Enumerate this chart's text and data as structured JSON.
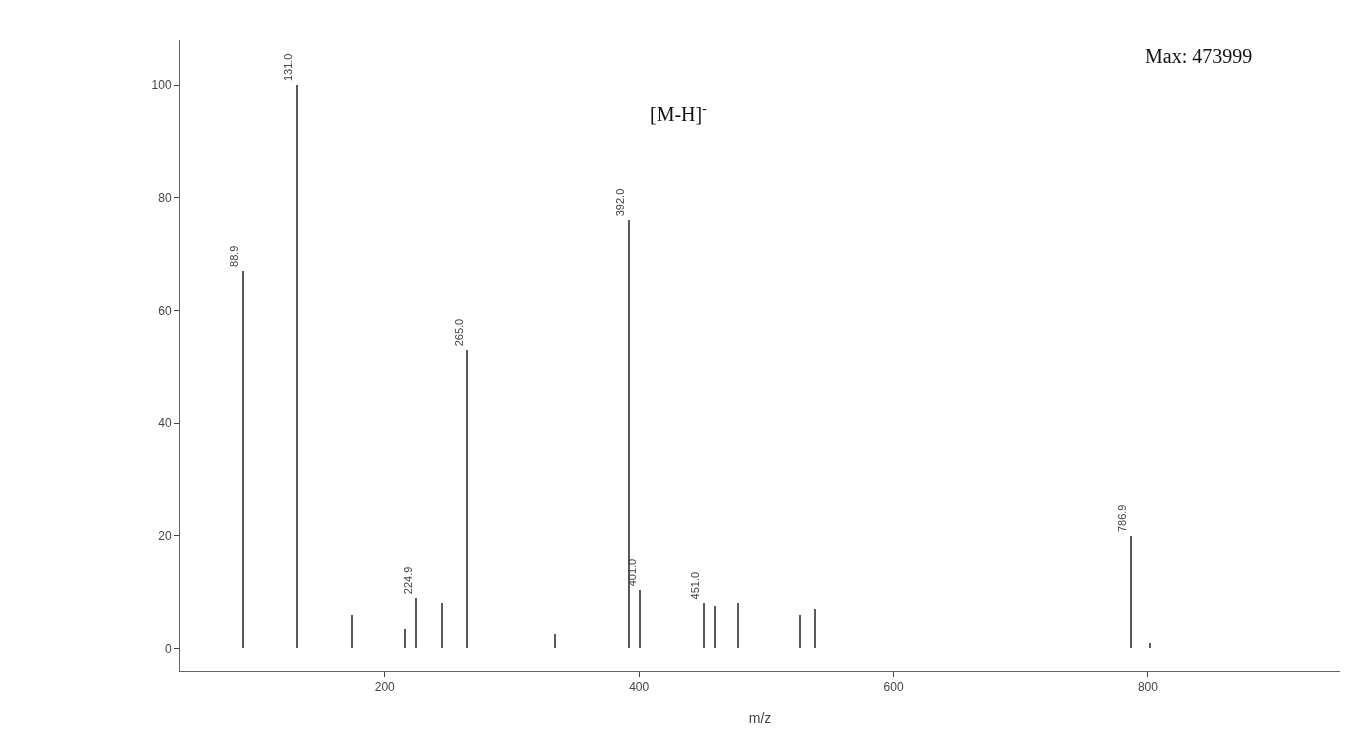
{
  "chart_data": {
    "type": "bar",
    "xlabel": "m/z",
    "x": [
      88.9,
      131,
      174,
      216,
      224.9,
      245,
      265,
      334,
      392,
      401,
      451,
      459.5,
      477.5,
      526.5,
      538.5,
      786.9,
      801.5
    ],
    "values": [
      67,
      100,
      6,
      3.5,
      9,
      8,
      53,
      2.5,
      76,
      10.4,
      8,
      7.5,
      8,
      6,
      7,
      20,
      1
    ],
    "color": "#5a5a5a",
    "xlim": [
      39,
      951
    ],
    "ylim": [
      -4,
      108
    ],
    "xticks": [
      200,
      400,
      600,
      800
    ],
    "yticks": [
      0,
      20,
      40,
      60,
      80,
      100
    ],
    "grid": false,
    "annotations": [
      "[M-H]$^{-}$",
      "Max: 473999",
      {
        "text": "88.9",
        "x": 88.9,
        "y": 67
      },
      {
        "text": "131.0",
        "x": 131,
        "y": 100
      },
      {
        "text": "224.9",
        "x": 224.9,
        "y": 9
      },
      {
        "text": "265.0",
        "x": 265,
        "y": 53
      },
      {
        "text": "392.0",
        "x": 392,
        "y": 76
      },
      {
        "text": "401.0",
        "x": 401,
        "y": 10.4
      },
      {
        "text": "451.0",
        "x": 451,
        "y": 8
      },
      {
        "text": "786.9",
        "x": 786.9,
        "y": 20
      }
    ]
  }
}
